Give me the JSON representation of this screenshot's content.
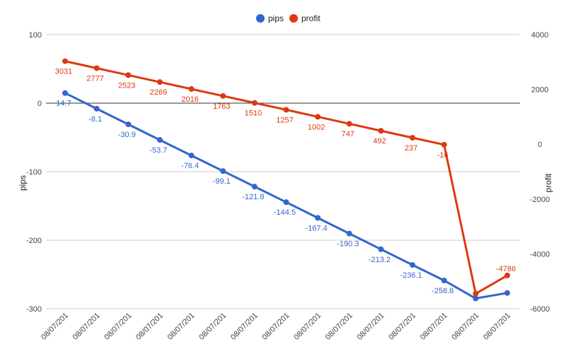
{
  "chart_data": {
    "type": "line",
    "title": "",
    "categories": [
      "08/07/201",
      "08/07/201",
      "08/07/201",
      "08/07/201",
      "08/07/201",
      "08/07/201",
      "08/07/201",
      "08/07/201",
      "08/07/201",
      "08/07/201",
      "08/07/201",
      "08/07/201",
      "08/07/201",
      "08/07/201",
      "08/07/201"
    ],
    "series": [
      {
        "name": "pips",
        "axis": "left",
        "color": "#3366cc",
        "values": [
          14.7,
          -8.1,
          -30.9,
          -53.7,
          -76.4,
          -99.1,
          -121.8,
          -144.5,
          -167.4,
          -190.3,
          -213.2,
          -236.1,
          -258.8,
          -285,
          -277
        ],
        "labels": [
          "14.7",
          "-8.1",
          "-30.9",
          "-53.7",
          "-76.4",
          "-99.1",
          "-121.8",
          "-144.5",
          "-167.4",
          "-190.3",
          "-213.2",
          "-236.1",
          "-258.8",
          "",
          ""
        ]
      },
      {
        "name": "profit",
        "axis": "right",
        "color": "#dc3912",
        "values": [
          3031,
          2777,
          2523,
          2269,
          2016,
          1763,
          1510,
          1257,
          1002,
          747,
          492,
          237,
          -16,
          -5450,
          -4786
        ],
        "labels": [
          "3031",
          "2777",
          "2523",
          "2269",
          "2016",
          "1763",
          "1510",
          "1257",
          "1002",
          "747",
          "492",
          "237",
          "-16",
          "",
          "-4786"
        ]
      }
    ],
    "y_left": {
      "label": "pips",
      "min": -300,
      "max": 100,
      "ticks": [
        "100",
        "0",
        "-100",
        "-200",
        "-300"
      ],
      "tick_values": [
        100,
        0,
        -100,
        -200,
        -300
      ]
    },
    "y_right": {
      "label": "profit",
      "min": -6000,
      "max": 4000,
      "ticks": [
        "4000",
        "2000",
        "0",
        "-2000",
        "-4000",
        "-6000"
      ],
      "tick_values": [
        4000,
        2000,
        0,
        -2000,
        -4000,
        -6000
      ]
    },
    "legend": {
      "position": "top",
      "entries": [
        "pips",
        "profit"
      ]
    },
    "grid": true
  }
}
